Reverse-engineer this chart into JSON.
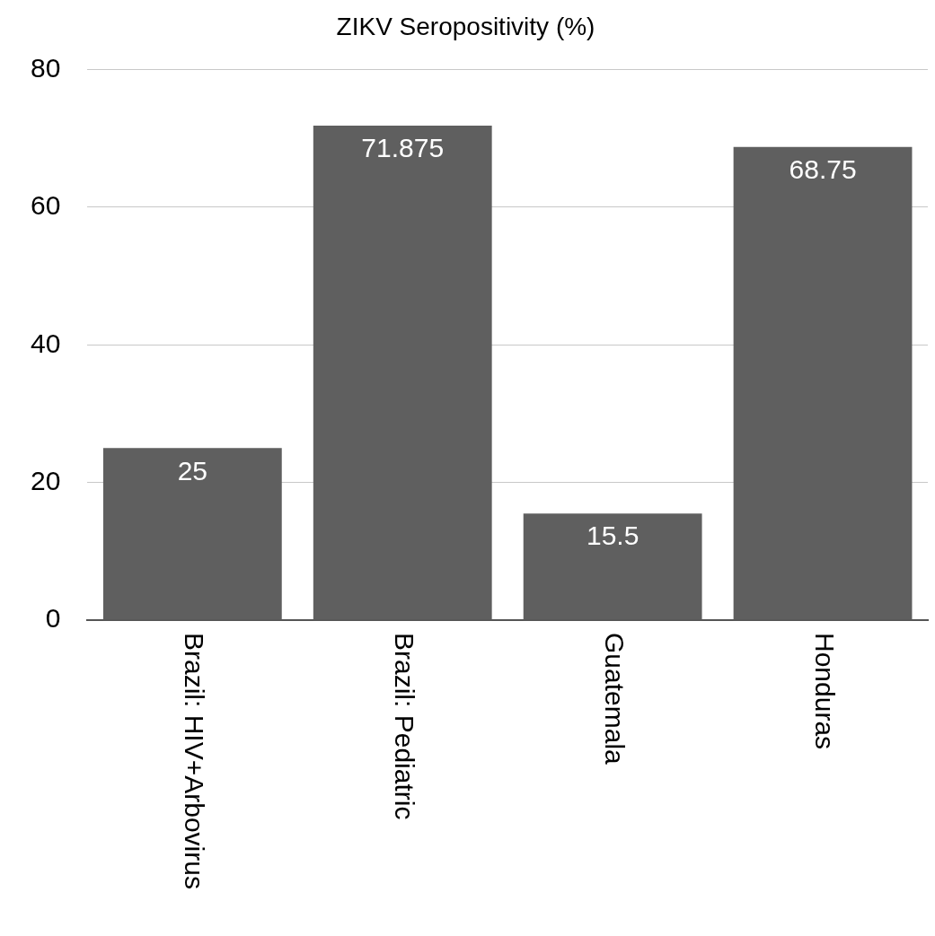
{
  "chart_data": {
    "type": "bar",
    "title": "ZIKV Seropositivity (%)",
    "categories": [
      "Brazil: HIV+Arbovirus",
      "Brazil: Pediatric",
      "Guatemala",
      "Honduras"
    ],
    "values": [
      25,
      71.875,
      15.5,
      68.75
    ],
    "color": "#5f5f5f",
    "ylim": [
      0,
      80
    ],
    "yticks": [
      0,
      20,
      40,
      60,
      80
    ],
    "grid": "y",
    "data_labels": true
  }
}
